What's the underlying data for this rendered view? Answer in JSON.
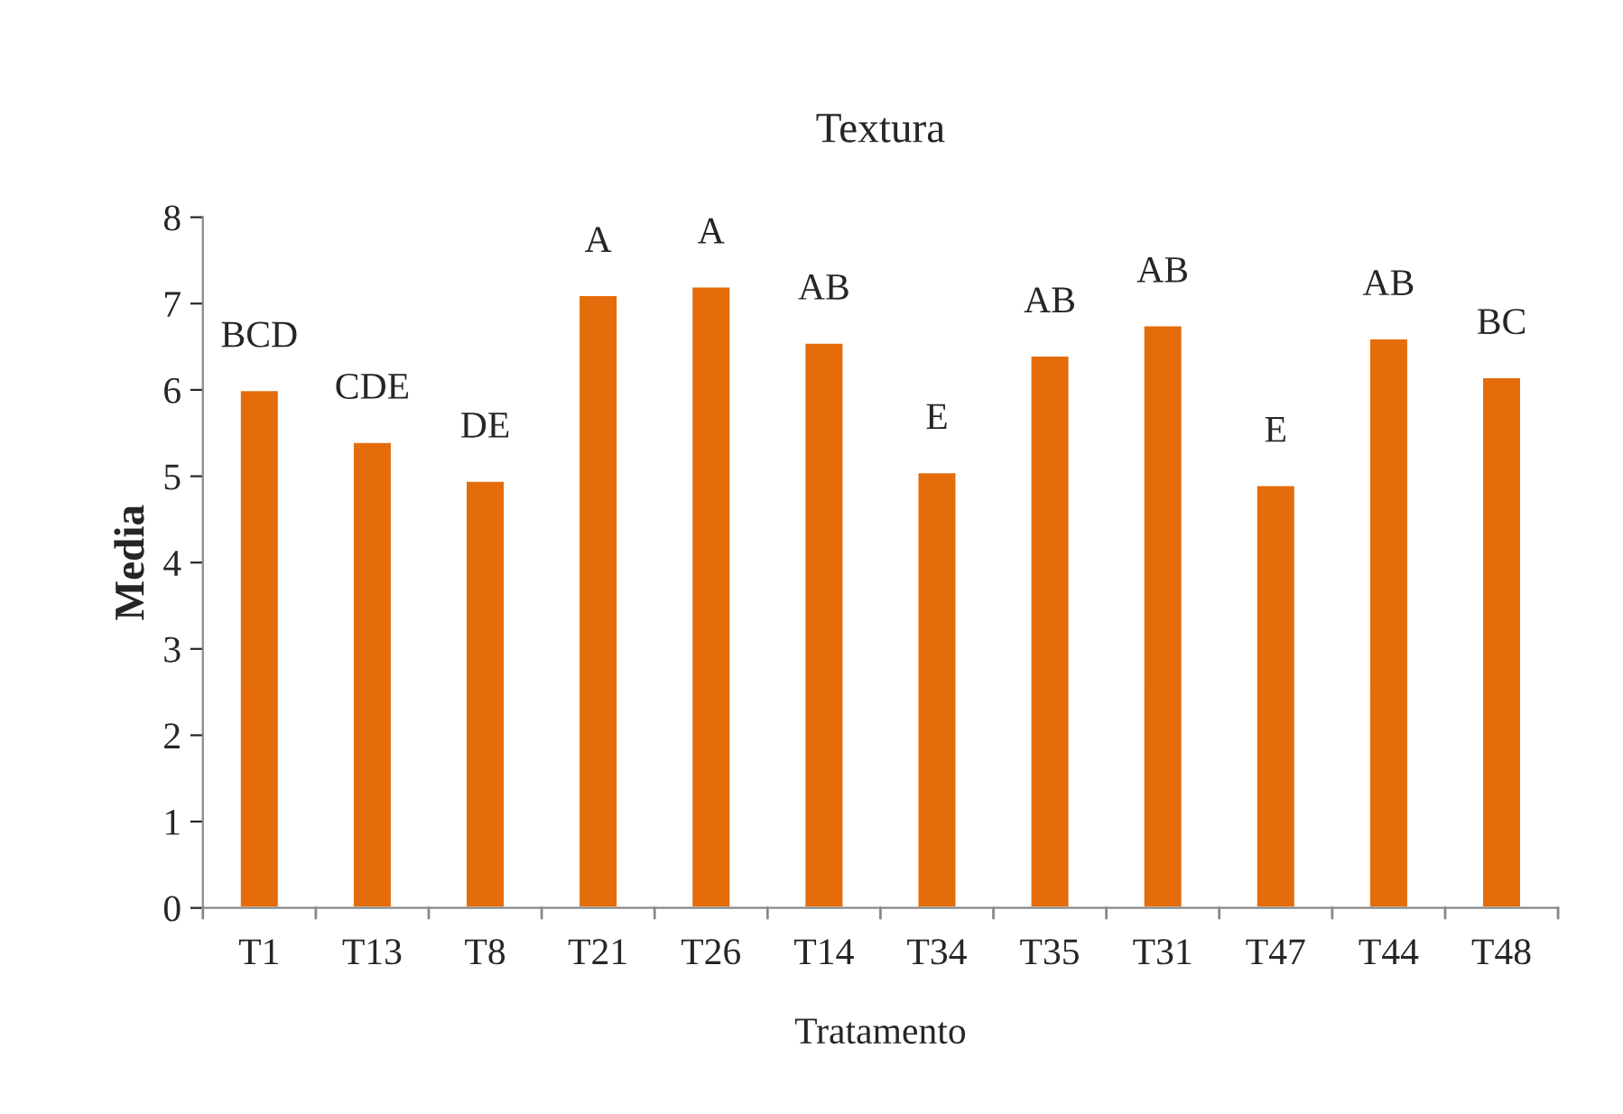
{
  "chart_data": {
    "type": "bar",
    "title": "Textura",
    "xlabel": "Tratamento",
    "ylabel": "Media",
    "categories": [
      "T1",
      "T13",
      "T8",
      "T21",
      "T26",
      "T14",
      "T34",
      "T35",
      "T31",
      "T47",
      "T44",
      "T48"
    ],
    "values": [
      6.0,
      5.4,
      4.95,
      7.1,
      7.2,
      6.55,
      5.05,
      6.4,
      6.75,
      4.9,
      6.6,
      6.15
    ],
    "color": "#e46c0a",
    "ylim": [
      0,
      8
    ],
    "yticks": [
      0,
      1,
      2,
      3,
      4,
      5,
      6,
      7,
      8
    ],
    "grid": false,
    "annotations": [
      {
        "text": "BCD",
        "x": "T1",
        "y": 6.0
      },
      {
        "text": "CDE",
        "x": "T13",
        "y": 5.4
      },
      {
        "text": "DE",
        "x": "T8",
        "y": 4.95
      },
      {
        "text": "A",
        "x": "T21",
        "y": 7.1
      },
      {
        "text": "A",
        "x": "T26",
        "y": 7.2
      },
      {
        "text": "AB",
        "x": "T14",
        "y": 6.55
      },
      {
        "text": "E",
        "x": "T34",
        "y": 5.05
      },
      {
        "text": "AB",
        "x": "T35",
        "y": 6.4
      },
      {
        "text": "AB",
        "x": "T31",
        "y": 6.75
      },
      {
        "text": "E",
        "x": "T47",
        "y": 4.9
      },
      {
        "text": "AB",
        "x": "T44",
        "y": 6.6
      },
      {
        "text": "BC",
        "x": "T48",
        "y": 6.15
      }
    ]
  }
}
